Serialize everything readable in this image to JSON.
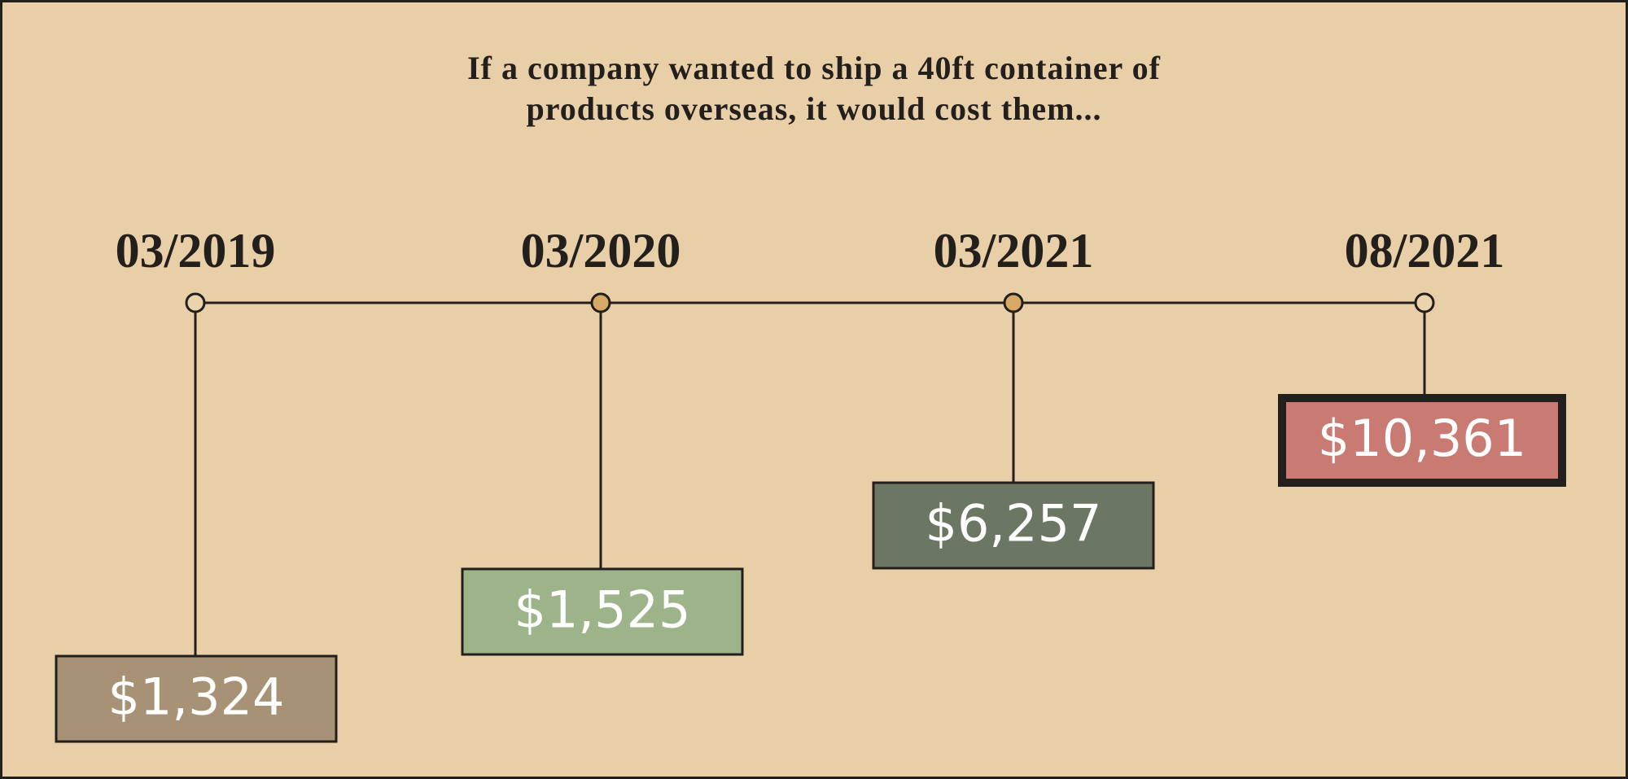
{
  "title": [
    "If a company wanted to ship a 40ft container of",
    "products overseas, it would cost them..."
  ],
  "timeline": [
    {
      "date": "03/2019",
      "cost": "$1,324"
    },
    {
      "date": "03/2020",
      "cost": "$1,525"
    },
    {
      "date": "03/2021",
      "cost": "$6,257"
    },
    {
      "date": "08/2021",
      "cost": "$10,361"
    }
  ]
}
